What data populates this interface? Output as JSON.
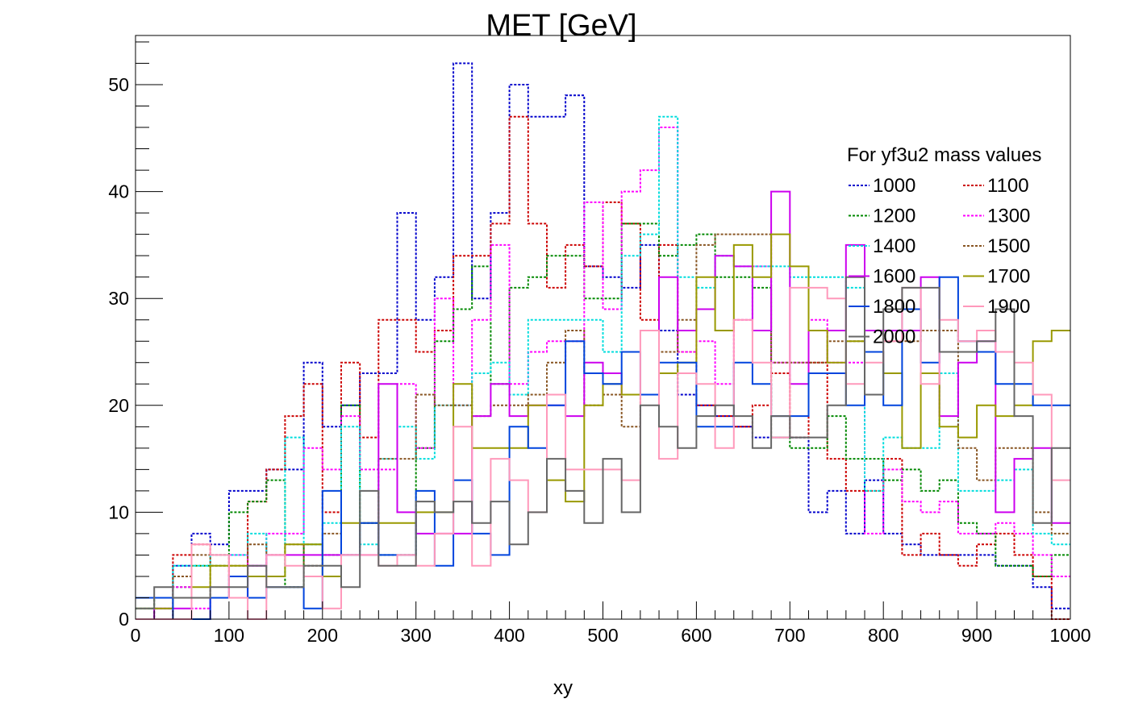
{
  "chart_data": {
    "type": "step",
    "title": "MET [GeV]",
    "xlabel": "xy",
    "ylabel": "",
    "xlim": [
      0,
      1000
    ],
    "ylim": [
      0,
      54.6
    ],
    "xticks": [
      "0",
      "100",
      "200",
      "300",
      "400",
      "500",
      "600",
      "700",
      "800",
      "900",
      "1000"
    ],
    "yticks": [
      "0",
      "10",
      "20",
      "30",
      "40",
      "50"
    ],
    "bin_width": 20,
    "legend": {
      "title": "For yf3u2 mass values",
      "placement": "top-right",
      "columns": 2
    },
    "series": [
      {
        "name": "1000",
        "color": "#0000cc",
        "style": "dotted",
        "values": [
          2,
          2,
          5,
          8,
          7,
          12,
          12,
          14,
          14,
          24,
          18,
          20,
          23,
          23,
          38,
          28,
          32,
          52,
          30,
          38,
          50,
          47,
          47,
          49,
          33,
          32,
          31,
          35,
          27,
          21,
          20,
          19,
          18,
          17,
          17,
          17,
          10,
          12,
          8,
          13,
          8,
          7,
          6,
          6,
          6,
          6,
          5,
          5,
          3,
          1
        ]
      },
      {
        "name": "1100",
        "color": "#cc0000",
        "style": "dotted",
        "values": [
          0,
          0,
          6,
          7,
          6,
          4,
          11,
          14,
          19,
          22,
          10,
          24,
          17,
          28,
          28,
          25,
          27,
          34,
          34,
          37,
          47,
          37,
          31,
          35,
          33,
          39,
          37,
          28,
          35,
          25,
          20,
          19,
          18,
          20,
          23,
          17,
          24,
          15,
          12,
          12,
          15,
          6,
          8,
          6,
          5,
          7,
          8,
          6,
          4,
          0
        ]
      },
      {
        "name": "1200",
        "color": "#008800",
        "style": "dotted",
        "values": [
          0,
          2,
          3,
          5,
          5,
          10,
          11,
          13,
          3,
          7,
          6,
          20,
          9,
          6,
          6,
          16,
          26,
          29,
          33,
          22,
          31,
          32,
          34,
          34,
          30,
          30,
          37,
          37,
          34,
          35,
          36,
          32,
          32,
          31,
          17,
          16,
          16,
          19,
          15,
          15,
          13,
          14,
          12,
          13,
          9,
          8,
          5,
          5,
          4,
          6
        ]
      },
      {
        "name": "1300",
        "color": "#ff00ff",
        "style": "dotted",
        "values": [
          0,
          0,
          3,
          1,
          2,
          6,
          5,
          8,
          8,
          16,
          14,
          19,
          14,
          14,
          22,
          16,
          30,
          20,
          28,
          35,
          22,
          25,
          26,
          26,
          39,
          29,
          40,
          42,
          46,
          25,
          26,
          22,
          28,
          33,
          24,
          24,
          28,
          24,
          24,
          8,
          14,
          11,
          10,
          11,
          8,
          8,
          9,
          8,
          6,
          4
        ]
      },
      {
        "name": "1400",
        "color": "#00dddd",
        "style": "dotted",
        "values": [
          1,
          1,
          5,
          5,
          6,
          6,
          8,
          4,
          17,
          7,
          9,
          18,
          7,
          15,
          18,
          15,
          20,
          20,
          23,
          24,
          21,
          28,
          28,
          28,
          28,
          25,
          34,
          36,
          47,
          32,
          31,
          34,
          33,
          33,
          33,
          32,
          32,
          32,
          31,
          12,
          17,
          16,
          16,
          23,
          12,
          12,
          13,
          14,
          8,
          7
        ]
      },
      {
        "name": "1500",
        "color": "#885522",
        "style": "dotted",
        "values": [
          0,
          0,
          4,
          6,
          2,
          5,
          7,
          6,
          7,
          5,
          8,
          6,
          9,
          15,
          15,
          21,
          20,
          20,
          19,
          20,
          20,
          21,
          24,
          27,
          20,
          21,
          18,
          21,
          25,
          28,
          35,
          36,
          36,
          36,
          24,
          24,
          24,
          26,
          26,
          27,
          26,
          26,
          27,
          27,
          16,
          13,
          16,
          16,
          10,
          8
        ]
      },
      {
        "name": "1600",
        "color": "#cc00ee",
        "style": "solid",
        "values": [
          0,
          1,
          1,
          0,
          2,
          2,
          5,
          6,
          6,
          6,
          6,
          6,
          6,
          22,
          10,
          8,
          8,
          8,
          19,
          22,
          19,
          20,
          20,
          19,
          24,
          23,
          21,
          21,
          32,
          27,
          29,
          34,
          33,
          27,
          40,
          22,
          27,
          27,
          35,
          27,
          27,
          27,
          32,
          19,
          24,
          26,
          10,
          15,
          16,
          9
        ]
      },
      {
        "name": "1700",
        "color": "#999900",
        "style": "solid",
        "values": [
          1,
          1,
          2,
          3,
          5,
          5,
          4,
          4,
          7,
          7,
          4,
          9,
          9,
          9,
          9,
          10,
          10,
          22,
          16,
          16,
          16,
          20,
          13,
          11,
          20,
          22,
          21,
          21,
          23,
          24,
          32,
          27,
          35,
          32,
          36,
          33,
          27,
          24,
          26,
          25,
          23,
          16,
          23,
          18,
          17,
          20,
          19,
          20,
          26,
          27
        ]
      },
      {
        "name": "1800",
        "color": "#0044dd",
        "style": "solid",
        "values": [
          2,
          2,
          0,
          0,
          2,
          4,
          2,
          3,
          3,
          1,
          12,
          6,
          9,
          6,
          6,
          12,
          5,
          13,
          8,
          6,
          18,
          16,
          20,
          26,
          23,
          22,
          25,
          21,
          24,
          24,
          18,
          18,
          24,
          22,
          19,
          19,
          23,
          23,
          20,
          25,
          20,
          29,
          24,
          32,
          26,
          25,
          22,
          22,
          20,
          20
        ]
      },
      {
        "name": "1900",
        "color": "#ff99bb",
        "style": "solid",
        "values": [
          0,
          0,
          0,
          7,
          6,
          2,
          0,
          6,
          5,
          4,
          1,
          6,
          6,
          5,
          6,
          5,
          8,
          18,
          5,
          15,
          13,
          10,
          21,
          14,
          14,
          14,
          13,
          27,
          15,
          23,
          22,
          16,
          28,
          24,
          17,
          31,
          31,
          30,
          22,
          24,
          26,
          31,
          22,
          28,
          26,
          27,
          25,
          24,
          21,
          13
        ]
      },
      {
        "name": "2000",
        "color": "#666666",
        "style": "solid",
        "values": [
          1,
          3,
          2,
          2,
          3,
          3,
          5,
          3,
          3,
          5,
          5,
          3,
          12,
          5,
          5,
          11,
          10,
          11,
          9,
          11,
          7,
          10,
          15,
          12,
          9,
          15,
          10,
          20,
          18,
          16,
          19,
          20,
          19,
          16,
          19,
          17,
          17,
          20,
          32,
          21,
          29,
          31,
          31,
          25,
          25,
          26,
          29,
          19,
          9,
          16
        ]
      }
    ]
  }
}
